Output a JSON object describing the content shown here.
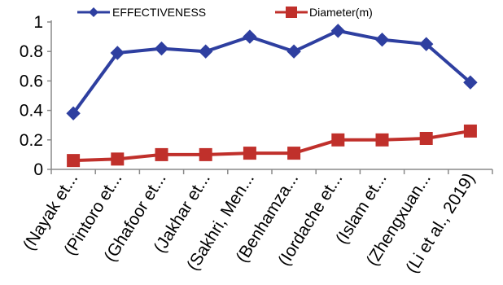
{
  "chart_data": {
    "type": "line",
    "categories": [
      "(Nayak et...",
      "(Pintoro et...",
      "(Ghafoor et...",
      "(Jakhar et...",
      "(Sakhri, Men...",
      "(Benhamza...",
      "(Iordache et...",
      "(Islam et...",
      "(Zhengxuan...",
      "(Li et al., 2019)"
    ],
    "series": [
      {
        "name": "EFFECTIVENESS",
        "color": "#2E3FA0",
        "marker": "diamond",
        "values": [
          0.38,
          0.79,
          0.82,
          0.8,
          0.9,
          0.8,
          0.94,
          0.88,
          0.85,
          0.59
        ]
      },
      {
        "name": "Diameter(m)",
        "color": "#C0302B",
        "marker": "square",
        "values": [
          0.06,
          0.07,
          0.1,
          0.1,
          0.11,
          0.11,
          0.2,
          0.2,
          0.21,
          0.26
        ]
      }
    ],
    "yticks": [
      "0",
      "0.2",
      "0.4",
      "0.6",
      "0.8",
      "1"
    ],
    "ylim": [
      0,
      1
    ],
    "grid": false,
    "legend": "top"
  }
}
